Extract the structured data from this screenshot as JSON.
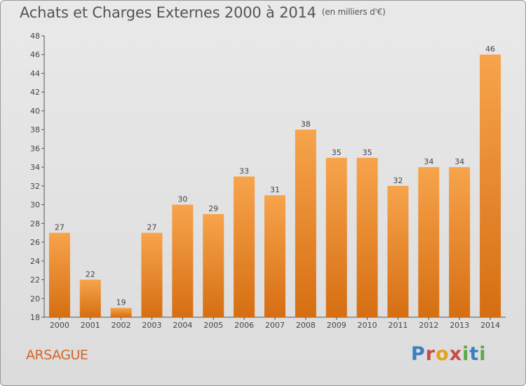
{
  "title": "Achats et Charges Externes 2000 à 2014",
  "unit": "(en milliers d'€)",
  "commune": "ARSAGUE",
  "brand": [
    "P",
    "r",
    "o",
    "x",
    "i",
    "t",
    "i"
  ],
  "colors": {
    "bar_top": "#f7a44c",
    "bar_bottom": "#d66e12",
    "axis": "#555555",
    "label": "#444444"
  },
  "chart_data": {
    "type": "bar",
    "categories": [
      "2000",
      "2001",
      "2002",
      "2003",
      "2004",
      "2005",
      "2006",
      "2007",
      "2008",
      "2009",
      "2010",
      "2011",
      "2012",
      "2013",
      "2014"
    ],
    "values": [
      27,
      22,
      19,
      27,
      30,
      29,
      33,
      31,
      38,
      35,
      35,
      32,
      34,
      34,
      46
    ],
    "ylim": [
      18,
      48
    ],
    "yticks": [
      18,
      20,
      22,
      24,
      26,
      28,
      30,
      32,
      34,
      36,
      38,
      40,
      42,
      44,
      46,
      48
    ],
    "grid": false
  }
}
